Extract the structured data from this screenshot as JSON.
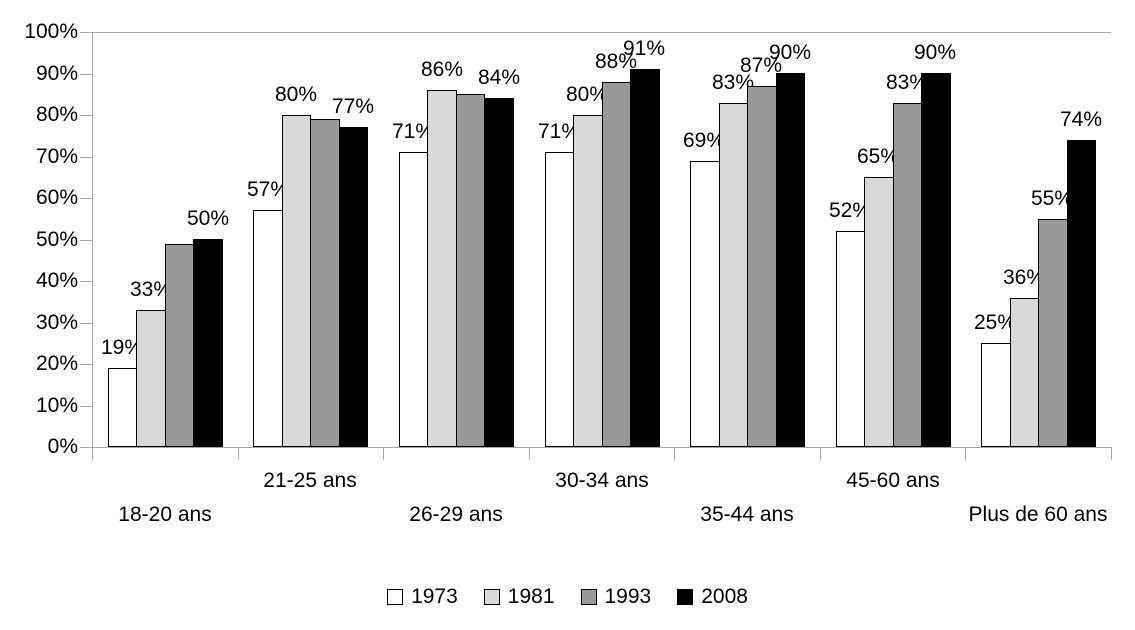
{
  "chart_data": {
    "type": "bar",
    "title": "",
    "xlabel": "",
    "ylabel": "",
    "ylim": [
      0,
      100
    ],
    "grid": "top-border-and-baseline-only",
    "legend_position": "bottom",
    "y_ticks": [
      "0%",
      "10%",
      "20%",
      "30%",
      "40%",
      "50%",
      "60%",
      "70%",
      "80%",
      "90%",
      "100%"
    ],
    "categories": [
      "18-20 ans",
      "21-25 ans",
      "26-29 ans",
      "30-34 ans",
      "35-44 ans",
      "45-60 ans",
      "Plus de 60 ans"
    ],
    "series": [
      {
        "name": "1973",
        "color": "#ffffff",
        "values": [
          19,
          57,
          71,
          71,
          69,
          52,
          25
        ],
        "labels": [
          "19%",
          "57%",
          "71%",
          "71%",
          "69%",
          "52%",
          "25%"
        ]
      },
      {
        "name": "1981",
        "color": "#d9d9d9",
        "values": [
          33,
          80,
          86,
          80,
          83,
          65,
          36
        ],
        "labels": [
          "33%",
          "80%",
          "86%",
          "80%",
          "83%",
          "65%",
          "36%"
        ]
      },
      {
        "name": "1993",
        "color": "#999999",
        "values": [
          49,
          79,
          85,
          88,
          87,
          83,
          55
        ],
        "labels": [
          null,
          null,
          null,
          "88%",
          "87%",
          "83%",
          "55%"
        ]
      },
      {
        "name": "2008",
        "color": "#000000",
        "values": [
          50,
          77,
          84,
          91,
          90,
          90,
          74
        ],
        "labels": [
          "50%",
          "77%",
          "84%",
          "91%",
          "90%",
          "90%",
          "74%"
        ]
      }
    ]
  },
  "axis_colors": {
    "line": "#a6a6a6",
    "text": "#000000"
  }
}
